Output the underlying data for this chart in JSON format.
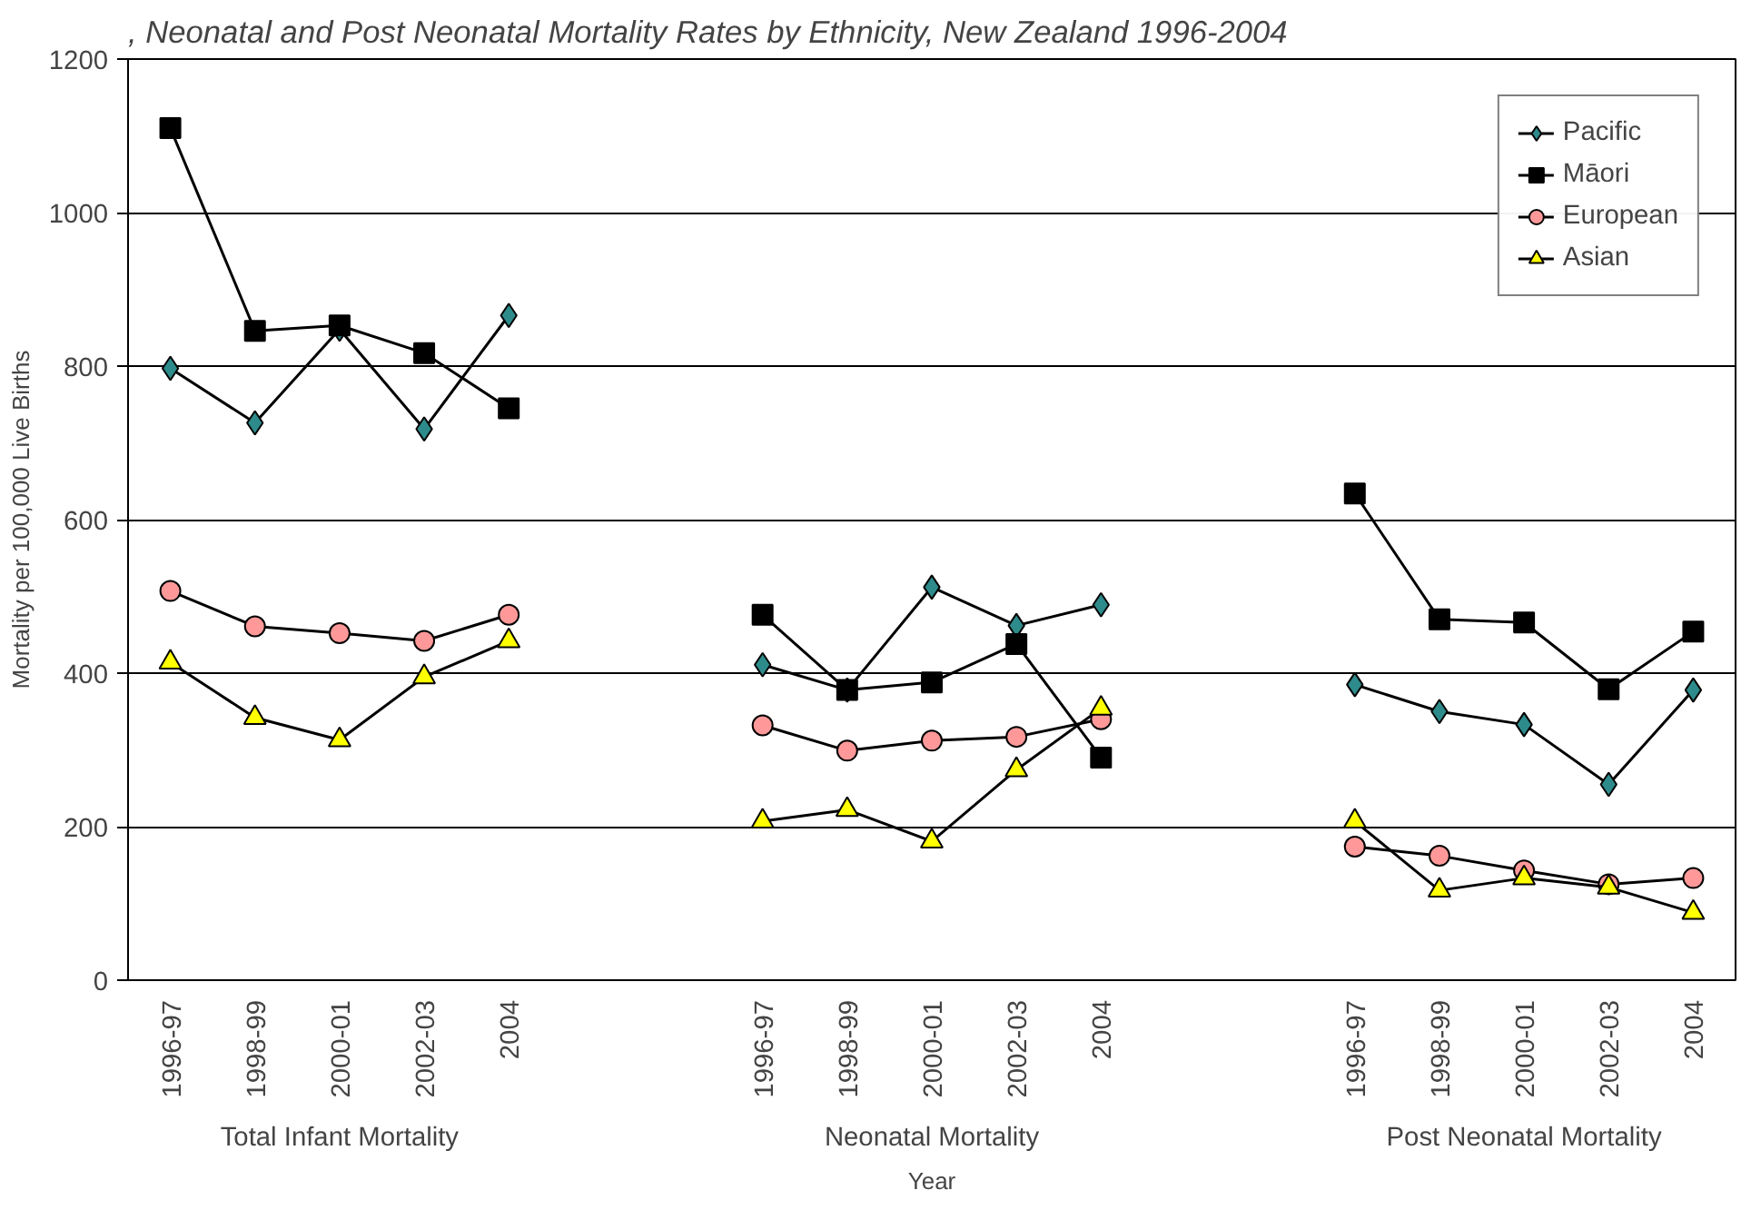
{
  "chart_data": {
    "type": "line",
    "title": ", Neonatal and Post Neonatal Mortality Rates by Ethnicity, New Zealand 1996-2004",
    "xlabel": "Year",
    "ylabel": "Mortality per 100,000 Live Births",
    "categories": [
      "1996-97",
      "1998-99",
      "2000-01",
      "2002-03",
      "2004",
      null,
      null,
      "1996-97",
      "1998-99",
      "2000-01",
      "2002-03",
      "2004",
      null,
      null,
      "1996-97",
      "1998-99",
      "2000-01",
      "2002-03",
      "2004"
    ],
    "annotations": [
      "Total Infant Mortality",
      "Neonatal Mortality",
      "Post Neonatal Mortality"
    ],
    "series": [
      {
        "name": "Pacific",
        "color": "#2e8b8b",
        "marker": "diamond",
        "values": [
          797,
          726,
          848,
          718,
          866,
          null,
          null,
          411,
          378,
          512,
          462,
          489,
          null,
          null,
          385,
          350,
          333,
          255,
          378
        ]
      },
      {
        "name": "Māori",
        "color": "#000000",
        "marker": "square",
        "values": [
          1110,
          846,
          853,
          817,
          745,
          null,
          null,
          476,
          378,
          388,
          438,
          290,
          null,
          null,
          634,
          470,
          466,
          379,
          454
        ]
      },
      {
        "name": "European",
        "color": "#ff9999",
        "marker": "circle",
        "values": [
          507,
          461,
          452,
          442,
          476,
          null,
          null,
          332,
          299,
          312,
          317,
          340,
          null,
          null,
          174,
          162,
          143,
          125,
          133
        ]
      },
      {
        "name": "Asian",
        "color": "#ffff00",
        "marker": "triangle",
        "values": [
          414,
          342,
          313,
          395,
          442,
          null,
          null,
          207,
          222,
          181,
          274,
          354,
          null,
          null,
          207,
          117,
          133,
          121,
          88
        ]
      }
    ],
    "ylim": [
      0,
      1200
    ],
    "yticks": [
      0,
      200,
      400,
      600,
      800,
      1000,
      1200
    ],
    "grid": "y",
    "legend": "top right",
    "line_style": "solid"
  }
}
